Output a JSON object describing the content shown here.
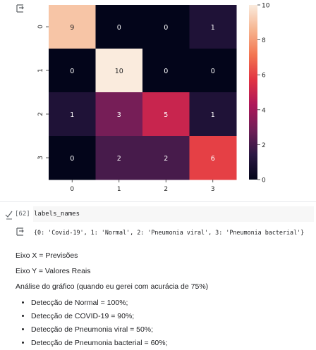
{
  "notebook": {
    "output_icon": "output-arrow-icon",
    "heatmap": {
      "chart_data": {
        "type": "heatmap",
        "x_tick_labels": [
          "0",
          "1",
          "2",
          "3"
        ],
        "y_tick_labels": [
          "0",
          "1",
          "2",
          "3"
        ],
        "matrix": [
          [
            9,
            0,
            0,
            1
          ],
          [
            0,
            10,
            0,
            0
          ],
          [
            1,
            3,
            5,
            1
          ],
          [
            0,
            2,
            2,
            6
          ]
        ],
        "cell_labels": [
          [
            "9",
            "0",
            "0",
            "1"
          ],
          [
            "0",
            "10",
            "0",
            "0"
          ],
          [
            "1",
            "3",
            "5",
            "1"
          ],
          [
            "0",
            "2",
            "2",
            "6"
          ]
        ],
        "colorbar_range": [
          0,
          10
        ],
        "colorbar_ticks": [
          0,
          2,
          4,
          6,
          8,
          10
        ],
        "colorbar_tick_labels": [
          "0",
          "2",
          "4",
          "6",
          "8",
          "10"
        ],
        "colormap": "rocket",
        "colormap_stops": [
          "#03051a",
          "#2b1843",
          "#701f57",
          "#ae1759",
          "#e13342",
          "#f37651",
          "#f6b48f",
          "#faebdd"
        ]
      }
    },
    "code_cell": {
      "execution_count": "[62]",
      "run_icon": "executed-check-icon",
      "code": "labels_names",
      "output": "{0: 'Covid-19', 1: 'Normal', 2: 'Pneumonia viral', 3: 'Pneumonia bacterial'}"
    },
    "text_cell": {
      "line1": "Eixo X = Previsões",
      "line2": "Eixo Y = Valores Reais",
      "line3": "Análise do gráfico (quando eu gerei com acurácia de 75%)",
      "bullets": [
        "Detecção de Normal = 100%;",
        "Detecção de COVID-19 = 90%;",
        "Detecção de Pneumonia viral = 50%;",
        "Detecção de Pneumonia bacterial = 60%;"
      ]
    }
  }
}
